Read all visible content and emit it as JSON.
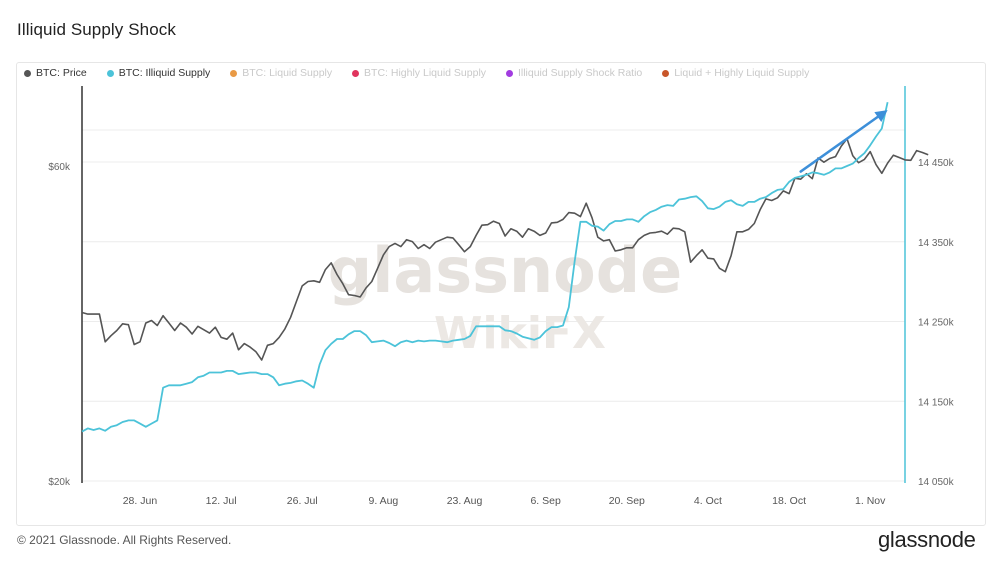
{
  "page": {
    "title": "Illiquid Supply Shock",
    "copyright": "© 2021 Glassnode. All Rights Reserved.",
    "brand": "glassnode"
  },
  "watermarks": [
    "glassnode",
    "WikiFX"
  ],
  "legend": [
    {
      "label": "BTC: Price",
      "color": "#555555",
      "active": true
    },
    {
      "label": "BTC: Illiquid Supply",
      "color": "#4cc3d9",
      "active": true
    },
    {
      "label": "BTC: Liquid Supply",
      "color": "#e99a45",
      "active": false
    },
    {
      "label": "BTC: Highly Liquid Supply",
      "color": "#e0345e",
      "active": false
    },
    {
      "label": "Illiquid Supply Shock Ratio",
      "color": "#a23ce0",
      "active": false
    },
    {
      "label": "Liquid + Highly Liquid Supply",
      "color": "#c8562a",
      "active": false
    }
  ],
  "colors": {
    "price": "#555555",
    "illiquid": "#4cc3d9",
    "arrow": "#3d8fd9",
    "grid": "#ececec"
  },
  "chart_data": {
    "type": "line",
    "x_start": "2021-06-18",
    "x_end": "2021-11-07",
    "x_ticks": [
      "28. Jun",
      "12. Jul",
      "26. Jul",
      "9. Aug",
      "23. Aug",
      "6. Sep",
      "20. Sep",
      "4. Oct",
      "18. Oct",
      "1. Nov"
    ],
    "y_left": {
      "ticks": [
        "$60k",
        "$20k"
      ],
      "log": true
    },
    "y_right": {
      "ticks": [
        "14 450k",
        "14 350k",
        "14 250k",
        "14 150k",
        "14 050k"
      ],
      "range": [
        14050000,
        14450000
      ]
    },
    "grid": true,
    "legend_position": "top-left",
    "series": [
      {
        "name": "BTC: Price",
        "axis": "left",
        "values": [
          36000,
          35800,
          35800,
          35800,
          32500,
          33200,
          33800,
          34600,
          34500,
          32200,
          32500,
          34700,
          35000,
          34400,
          35600,
          34700,
          33800,
          34700,
          34200,
          33400,
          34300,
          33900,
          33500,
          34200,
          33000,
          32800,
          33500,
          31600,
          32300,
          31900,
          31400,
          30500,
          32100,
          32300,
          33000,
          34000,
          35400,
          37400,
          39500,
          40100,
          40200,
          40000,
          41800,
          42800,
          41100,
          39800,
          38300,
          38200,
          38000,
          39200,
          40100,
          42000,
          44000,
          45300,
          45800,
          45300,
          46400,
          46100,
          45000,
          45600,
          45000,
          46000,
          46400,
          46800,
          46700,
          45600,
          44500,
          45300,
          47100,
          48800,
          48900,
          49500,
          49100,
          47000,
          48200,
          47800,
          46800,
          48200,
          47800,
          47100,
          47500,
          49200,
          49300,
          49800,
          51000,
          50900,
          50300,
          52700,
          50100,
          46800,
          46200,
          46400,
          44600,
          44800,
          45100,
          45100,
          46400,
          47100,
          47500,
          47600,
          47800,
          47300,
          48300,
          48200,
          47700,
          42900,
          43900,
          44800,
          43500,
          43400,
          42000,
          41500,
          43900,
          47700,
          47700,
          48100,
          49100,
          51500,
          53500,
          53200,
          53700,
          55000,
          54500,
          57500,
          57300,
          58400,
          57400,
          61700,
          60800,
          61600,
          62000,
          64300,
          66000,
          62200,
          60700,
          61400,
          63100,
          60300,
          58500,
          60600,
          62300,
          61800,
          61300,
          61200,
          63300,
          62900,
          62400
        ],
        "color": "#555555"
      },
      {
        "name": "BTC: Illiquid Supply",
        "axis": "right",
        "values": [
          14112000,
          14116000,
          14114000,
          14116000,
          14113000,
          14118000,
          14120000,
          14124000,
          14126000,
          14126000,
          14122000,
          14118000,
          14122000,
          14126000,
          14167000,
          14170000,
          14170000,
          14170000,
          14172000,
          14174000,
          14180000,
          14182000,
          14186000,
          14186000,
          14186000,
          14188000,
          14188000,
          14184000,
          14185000,
          14186000,
          14186000,
          14184000,
          14184000,
          14180000,
          14170000,
          14172000,
          14173000,
          14175000,
          14176000,
          14172000,
          14167000,
          14196000,
          14214000,
          14222000,
          14228000,
          14228000,
          14234000,
          14238000,
          14238000,
          14233000,
          14224000,
          14225000,
          14226000,
          14223000,
          14219000,
          14224000,
          14226000,
          14224000,
          14226000,
          14225000,
          14226000,
          14226000,
          14225000,
          14224000,
          14226000,
          14227000,
          14228000,
          14232000,
          14244000,
          14244000,
          14244000,
          14244000,
          14244000,
          14239000,
          14238000,
          14235000,
          14231000,
          14229000,
          14227000,
          14230000,
          14238000,
          14243000,
          14243000,
          14245000,
          14268000,
          14325000,
          14375000,
          14375000,
          14370000,
          14369000,
          14364000,
          14372000,
          14376000,
          14376000,
          14378000,
          14378000,
          14375000,
          14382000,
          14387000,
          14390000,
          14394000,
          14396000,
          14395000,
          14403000,
          14404000,
          14406000,
          14407000,
          14401000,
          14392000,
          14391000,
          14394000,
          14400000,
          14402000,
          14397000,
          14395000,
          14400000,
          14400000,
          14404000,
          14406000,
          14411000,
          14415000,
          14416000,
          14425000,
          14430000,
          14432000,
          14434000,
          14437000,
          14436000,
          14434000,
          14437000,
          14442000,
          14442000,
          14445000,
          14448000,
          14455000,
          14461000,
          14471000,
          14482000,
          14492000,
          14525000
        ],
        "color": "#4cc3d9"
      }
    ],
    "annotation": {
      "type": "arrow",
      "from": [
        "2021-10-20",
        14438000
      ],
      "to": [
        "2021-11-04",
        14515000
      ],
      "color": "#3d8fd9"
    }
  }
}
